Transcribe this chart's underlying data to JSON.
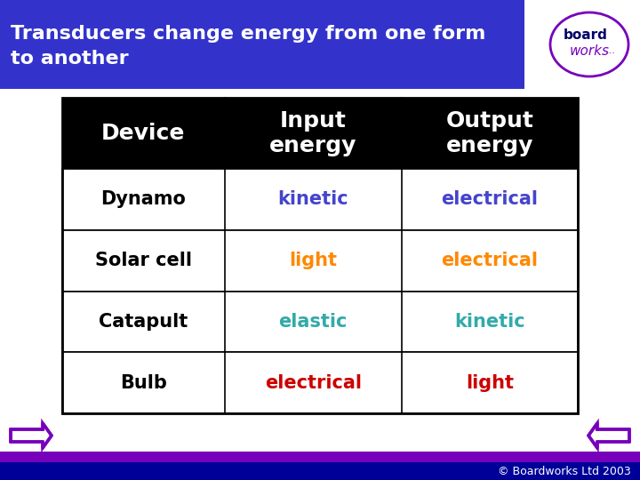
{
  "title": "Transducers change energy from one form\nto another",
  "title_bg": "#3333cc",
  "title_color": "#ffffff",
  "title_fontsize": 16,
  "bg_color": "#ffffff",
  "table_header_bg": "#000000",
  "table_header_color": "#ffffff",
  "table_header_fontsize": 18,
  "table_border_color": "#000000",
  "device_fontsize": 15,
  "headers": [
    "Device",
    "Input\nenergy",
    "Output\nenergy"
  ],
  "rows": [
    [
      "Dynamo",
      "kinetic",
      "electrical"
    ],
    [
      "Solar cell",
      "light",
      "electrical"
    ],
    [
      "Catapult",
      "elastic",
      "kinetic"
    ],
    [
      "Bulb",
      "electrical",
      "light"
    ]
  ],
  "device_col_colors": [
    "#000000",
    "#000000",
    "#000000",
    "#000000"
  ],
  "input_col_colors": [
    "#4444cc",
    "#ff8800",
    "#33aaaa",
    "#cc0000"
  ],
  "output_col_colors": [
    "#4444cc",
    "#ff8800",
    "#33aaaa",
    "#cc0000"
  ],
  "footer_text": "© Boardworks Ltd 2003",
  "footer_color": "#ffffff",
  "footer_fontsize": 9,
  "arrow_color": "#7700bb",
  "purple_bar_color": "#7700bb",
  "navy_bar_color": "#000099",
  "logo_border_color": "#7700bb",
  "logo_board_color": "#000066",
  "logo_works_color": "#7700bb"
}
